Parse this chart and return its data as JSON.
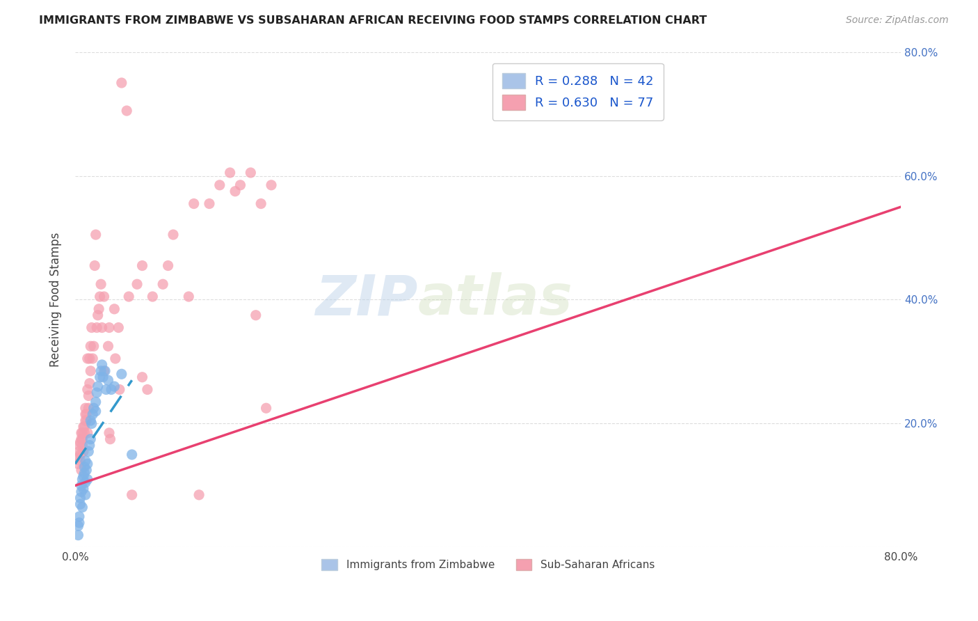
{
  "title": "IMMIGRANTS FROM ZIMBABWE VS SUBSAHARAN AFRICAN RECEIVING FOOD STAMPS CORRELATION CHART",
  "source": "Source: ZipAtlas.com",
  "ylabel": "Receiving Food Stamps",
  "xlim": [
    0.0,
    80.0
  ],
  "ylim": [
    0.0,
    80.0
  ],
  "xticks": [
    0.0,
    10.0,
    20.0,
    30.0,
    40.0,
    50.0,
    60.0,
    70.0,
    80.0
  ],
  "xticklabels": [
    "0.0%",
    "",
    "",
    "",
    "",
    "",
    "",
    "",
    "80.0%"
  ],
  "yticks_right": [
    0.0,
    20.0,
    40.0,
    60.0,
    80.0
  ],
  "yticklabels_right": [
    "",
    "20.0%",
    "40.0%",
    "60.0%",
    "80.0%"
  ],
  "legend_items": [
    {
      "label": "R = 0.288   N = 42",
      "color": "#aac4e8"
    },
    {
      "label": "R = 0.630   N = 77",
      "color": "#f5a0b0"
    }
  ],
  "zimbabwe_color": "#7fb3e8",
  "subsaharan_color": "#f5a0b0",
  "zimbabwe_line_color": "#3399cc",
  "subsaharan_line_color": "#e84070",
  "watermark": "ZIPatlas",
  "background_color": "#ffffff",
  "grid_color": "#dddddd",
  "zimbabwe_points": [
    [
      0.3,
      2.0
    ],
    [
      0.3,
      3.5
    ],
    [
      0.4,
      5.0
    ],
    [
      0.4,
      4.0
    ],
    [
      0.5,
      7.0
    ],
    [
      0.5,
      8.0
    ],
    [
      0.6,
      9.0
    ],
    [
      0.6,
      10.0
    ],
    [
      0.7,
      11.0
    ],
    [
      0.7,
      6.5
    ],
    [
      0.8,
      9.5
    ],
    [
      0.8,
      11.5
    ],
    [
      0.9,
      13.0
    ],
    [
      0.9,
      12.0
    ],
    [
      1.0,
      14.0
    ],
    [
      1.0,
      10.5
    ],
    [
      1.0,
      8.5
    ],
    [
      1.1,
      12.5
    ],
    [
      1.2,
      13.5
    ],
    [
      1.2,
      11.0
    ],
    [
      1.3,
      15.5
    ],
    [
      1.4,
      16.5
    ],
    [
      1.5,
      17.5
    ],
    [
      1.5,
      20.5
    ],
    [
      1.6,
      20.0
    ],
    [
      1.7,
      21.5
    ],
    [
      1.8,
      22.5
    ],
    [
      2.0,
      23.5
    ],
    [
      2.0,
      22.0
    ],
    [
      2.1,
      25.0
    ],
    [
      2.2,
      26.0
    ],
    [
      2.4,
      27.5
    ],
    [
      2.5,
      28.5
    ],
    [
      2.6,
      29.5
    ],
    [
      2.7,
      27.5
    ],
    [
      2.9,
      28.5
    ],
    [
      3.0,
      25.5
    ],
    [
      3.2,
      27.0
    ],
    [
      3.5,
      25.5
    ],
    [
      3.8,
      26.0
    ],
    [
      4.5,
      28.0
    ],
    [
      5.5,
      15.0
    ]
  ],
  "subsaharan_points": [
    [
      0.3,
      13.5
    ],
    [
      0.3,
      14.5
    ],
    [
      0.4,
      15.5
    ],
    [
      0.4,
      16.5
    ],
    [
      0.5,
      14.0
    ],
    [
      0.5,
      15.0
    ],
    [
      0.5,
      17.0
    ],
    [
      0.6,
      17.5
    ],
    [
      0.6,
      18.5
    ],
    [
      0.6,
      12.5
    ],
    [
      0.7,
      16.5
    ],
    [
      0.7,
      17.5
    ],
    [
      0.7,
      18.5
    ],
    [
      0.8,
      19.5
    ],
    [
      0.8,
      15.5
    ],
    [
      0.9,
      18.5
    ],
    [
      0.9,
      19.5
    ],
    [
      1.0,
      20.5
    ],
    [
      1.0,
      21.5
    ],
    [
      1.0,
      22.5
    ],
    [
      1.1,
      20.5
    ],
    [
      1.1,
      21.5
    ],
    [
      1.2,
      25.5
    ],
    [
      1.2,
      30.5
    ],
    [
      1.2,
      18.5
    ],
    [
      1.3,
      22.5
    ],
    [
      1.3,
      24.5
    ],
    [
      1.4,
      26.5
    ],
    [
      1.4,
      30.5
    ],
    [
      1.5,
      28.5
    ],
    [
      1.5,
      32.5
    ],
    [
      1.6,
      35.5
    ],
    [
      1.7,
      30.5
    ],
    [
      1.8,
      32.5
    ],
    [
      1.9,
      45.5
    ],
    [
      2.0,
      50.5
    ],
    [
      2.1,
      35.5
    ],
    [
      2.2,
      37.5
    ],
    [
      2.3,
      38.5
    ],
    [
      2.4,
      40.5
    ],
    [
      2.5,
      42.5
    ],
    [
      2.6,
      35.5
    ],
    [
      2.8,
      40.5
    ],
    [
      2.8,
      28.5
    ],
    [
      3.2,
      32.5
    ],
    [
      3.3,
      35.5
    ],
    [
      3.3,
      18.5
    ],
    [
      3.4,
      17.5
    ],
    [
      3.8,
      38.5
    ],
    [
      3.9,
      30.5
    ],
    [
      4.2,
      35.5
    ],
    [
      4.3,
      25.5
    ],
    [
      4.5,
      75.0
    ],
    [
      5.0,
      70.5
    ],
    [
      5.2,
      40.5
    ],
    [
      5.5,
      8.5
    ],
    [
      6.0,
      42.5
    ],
    [
      6.5,
      45.5
    ],
    [
      6.5,
      27.5
    ],
    [
      7.0,
      25.5
    ],
    [
      7.5,
      40.5
    ],
    [
      8.5,
      42.5
    ],
    [
      9.0,
      45.5
    ],
    [
      9.5,
      50.5
    ],
    [
      11.0,
      40.5
    ],
    [
      11.5,
      55.5
    ],
    [
      12.0,
      8.5
    ],
    [
      13.0,
      55.5
    ],
    [
      14.0,
      58.5
    ],
    [
      15.0,
      60.5
    ],
    [
      15.5,
      57.5
    ],
    [
      16.0,
      58.5
    ],
    [
      17.0,
      60.5
    ],
    [
      17.5,
      37.5
    ],
    [
      18.0,
      55.5
    ],
    [
      18.5,
      22.5
    ],
    [
      19.0,
      58.5
    ]
  ],
  "zimbabwe_regression": {
    "x_start": 0.0,
    "y_start": 13.5,
    "x_end": 5.5,
    "y_end": 27.0
  },
  "subsaharan_regression": {
    "x_start": 0.0,
    "y_start": 10.0,
    "x_end": 80.0,
    "y_end": 55.0
  }
}
